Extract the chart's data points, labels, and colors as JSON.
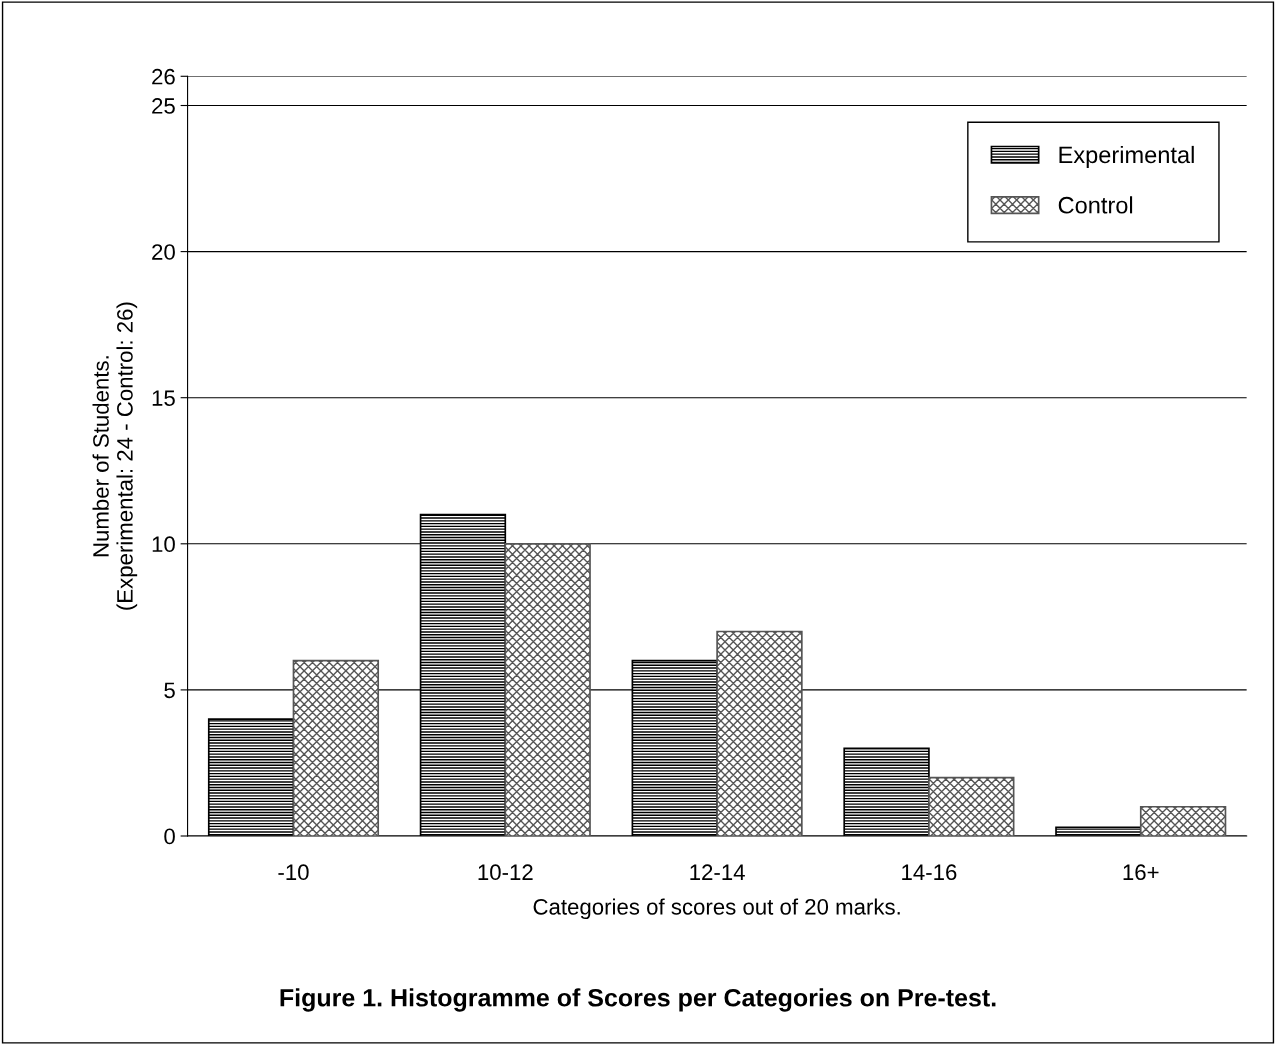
{
  "chart_data": {
    "type": "bar",
    "title": "Figure 1. Histogramme of Scores per Categories on Pre-test.",
    "xlabel": "Categories of scores out of 20 marks.",
    "ylabel": "Number of Students.\n(Experimental: 24 - Control: 26)",
    "categories": [
      "-10",
      "10-12",
      "12-14",
      "14-16",
      "16+"
    ],
    "series": [
      {
        "name": "Experimental",
        "color": "#000000",
        "values": [
          4,
          11,
          6,
          3,
          0.3
        ]
      },
      {
        "name": "Control",
        "color": "#555555",
        "values": [
          6,
          10,
          7,
          2,
          1
        ]
      }
    ],
    "ylim": [
      0,
      26
    ],
    "yticks": [
      0,
      5,
      10,
      15,
      20,
      25,
      26
    ],
    "grid": "y",
    "legend": "top right"
  }
}
